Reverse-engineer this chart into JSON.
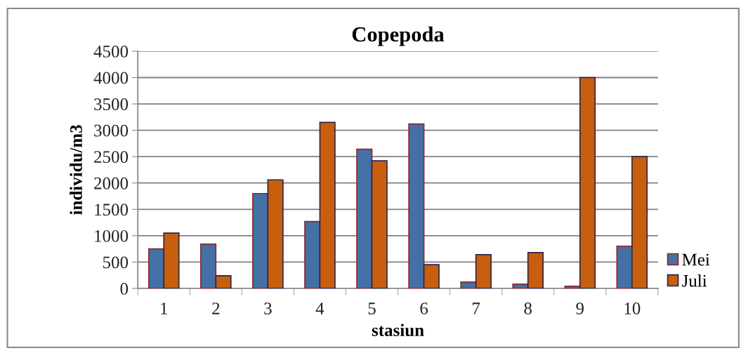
{
  "chart_data": {
    "type": "bar",
    "title": "Copepoda",
    "xlabel": "stasiun",
    "ylabel": "individu/m3",
    "categories": [
      "1",
      "2",
      "3",
      "4",
      "5",
      "6",
      "7",
      "8",
      "9",
      "10"
    ],
    "series": [
      {
        "name": "Mei",
        "color": "#4470a6",
        "values": [
          750,
          840,
          1800,
          1270,
          2640,
          3120,
          120,
          80,
          40,
          800
        ]
      },
      {
        "name": "Juli",
        "color": "#c85f0c",
        "values": [
          1050,
          240,
          2060,
          3150,
          2420,
          450,
          640,
          680,
          4000,
          2500
        ]
      }
    ],
    "ylim": [
      0,
      4500
    ],
    "yticks": [
      0,
      500,
      1000,
      1500,
      2000,
      2500,
      3000,
      3500,
      4000,
      4500
    ],
    "grid": "y",
    "legend": "right"
  }
}
